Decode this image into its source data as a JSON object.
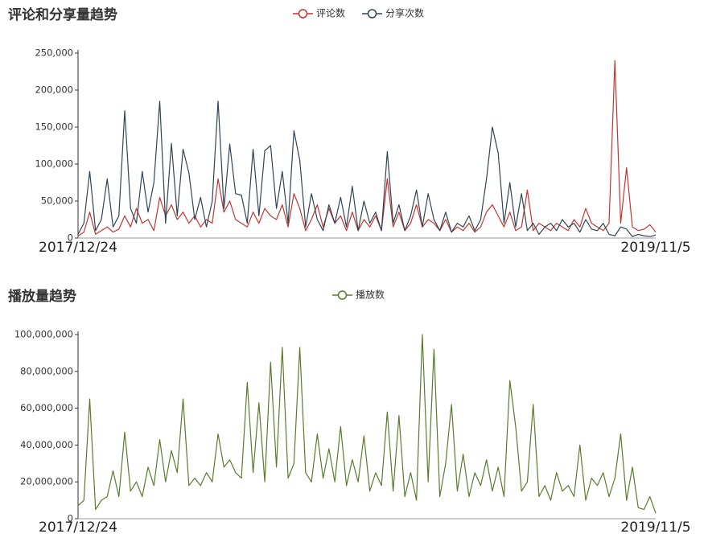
{
  "chart_data": [
    {
      "type": "line",
      "title": "评论和分享量趋势",
      "categories": [
        "2017/12/24",
        null,
        null,
        null,
        null,
        null,
        null,
        null,
        null,
        null,
        null,
        null,
        null,
        null,
        null,
        null,
        null,
        null,
        null,
        null,
        null,
        null,
        null,
        null,
        null,
        null,
        null,
        null,
        null,
        null,
        null,
        null,
        null,
        null,
        null,
        null,
        null,
        null,
        null,
        null,
        null,
        null,
        null,
        null,
        null,
        null,
        null,
        null,
        null,
        null,
        null,
        null,
        null,
        null,
        null,
        null,
        null,
        null,
        null,
        null,
        null,
        null,
        null,
        null,
        null,
        null,
        null,
        null,
        null,
        null,
        null,
        null,
        null,
        null,
        null,
        null,
        null,
        null,
        null,
        null,
        null,
        null,
        null,
        null,
        null,
        null,
        null,
        null,
        null,
        null,
        null,
        null,
        null,
        null,
        null,
        null,
        null,
        null,
        null,
        "2019/11/5"
      ],
      "series": [
        {
          "name": "评论数",
          "color": "#c23531",
          "values": [
            3000,
            8000,
            35000,
            5000,
            10000,
            15000,
            8000,
            12000,
            30000,
            15000,
            40000,
            20000,
            25000,
            10000,
            55000,
            30000,
            45000,
            25000,
            35000,
            20000,
            30000,
            15000,
            25000,
            20000,
            80000,
            35000,
            50000,
            25000,
            20000,
            15000,
            35000,
            20000,
            40000,
            30000,
            25000,
            45000,
            15000,
            60000,
            40000,
            10000,
            25000,
            45000,
            15000,
            40000,
            20000,
            30000,
            10000,
            35000,
            10000,
            25000,
            15000,
            30000,
            10000,
            80000,
            15000,
            35000,
            10000,
            20000,
            45000,
            15000,
            25000,
            20000,
            10000,
            25000,
            8000,
            15000,
            10000,
            20000,
            8000,
            15000,
            35000,
            45000,
            30000,
            15000,
            35000,
            10000,
            15000,
            65000,
            10000,
            20000,
            15000,
            10000,
            20000,
            15000,
            10000,
            25000,
            15000,
            40000,
            20000,
            15000,
            10000,
            20000,
            240000,
            20000,
            95000,
            15000,
            10000,
            12000,
            18000,
            8000
          ]
        },
        {
          "name": "分享次数",
          "color": "#2f4554",
          "values": [
            5000,
            20000,
            90000,
            10000,
            25000,
            80000,
            15000,
            30000,
            172000,
            40000,
            20000,
            90000,
            35000,
            75000,
            185000,
            20000,
            128000,
            30000,
            120000,
            88000,
            25000,
            55000,
            15000,
            50000,
            185000,
            40000,
            127000,
            60000,
            58000,
            20000,
            120000,
            30000,
            118000,
            125000,
            40000,
            90000,
            20000,
            145000,
            105000,
            15000,
            60000,
            25000,
            10000,
            45000,
            20000,
            55000,
            15000,
            70000,
            10000,
            50000,
            20000,
            35000,
            10000,
            117000,
            20000,
            45000,
            10000,
            30000,
            65000,
            15000,
            60000,
            25000,
            10000,
            35000,
            8000,
            20000,
            15000,
            30000,
            10000,
            25000,
            80000,
            150000,
            115000,
            20000,
            75000,
            15000,
            60000,
            10000,
            20000,
            5000,
            15000,
            20000,
            10000,
            25000,
            15000,
            20000,
            8000,
            25000,
            12000,
            10000,
            20000,
            5000,
            3000,
            15000,
            12000,
            2000,
            5000,
            3000,
            2000,
            4000
          ]
        }
      ],
      "ylim": [
        0,
        250000
      ],
      "yticks": [
        0,
        {
          "value": 50000,
          "label": "50,000"
        },
        {
          "value": 100000,
          "label": "100,000"
        },
        {
          "value": 150000,
          "label": "150,000"
        },
        {
          "value": 200000,
          "label": "200,000"
        },
        {
          "value": 250000,
          "label": "250,000"
        }
      ]
    },
    {
      "type": "line",
      "title": "播放量趋势",
      "categories": [
        "2017/12/24",
        null,
        null,
        null,
        null,
        null,
        null,
        null,
        null,
        null,
        null,
        null,
        null,
        null,
        null,
        null,
        null,
        null,
        null,
        null,
        null,
        null,
        null,
        null,
        null,
        null,
        null,
        null,
        null,
        null,
        null,
        null,
        null,
        null,
        null,
        null,
        null,
        null,
        null,
        null,
        null,
        null,
        null,
        null,
        null,
        null,
        null,
        null,
        null,
        null,
        null,
        null,
        null,
        null,
        null,
        null,
        null,
        null,
        null,
        null,
        null,
        null,
        null,
        null,
        null,
        null,
        null,
        null,
        null,
        null,
        null,
        null,
        null,
        null,
        null,
        null,
        null,
        null,
        null,
        null,
        null,
        null,
        null,
        null,
        null,
        null,
        null,
        null,
        null,
        null,
        null,
        null,
        null,
        null,
        null,
        null,
        null,
        null,
        null,
        "2019/11/5"
      ],
      "series": [
        {
          "name": "播放数",
          "color": "#5b7a2e",
          "values": [
            7000000,
            10000000,
            65000000,
            5000000,
            10000000,
            12000000,
            26000000,
            12000000,
            47000000,
            15000000,
            20000000,
            12000000,
            28000000,
            18000000,
            43000000,
            20000000,
            37000000,
            25000000,
            65000000,
            18000000,
            22000000,
            18000000,
            25000000,
            20000000,
            46000000,
            28000000,
            32000000,
            25000000,
            22000000,
            74000000,
            25000000,
            63000000,
            20000000,
            85000000,
            28000000,
            93000000,
            22000000,
            30000000,
            93000000,
            25000000,
            20000000,
            46000000,
            22000000,
            38000000,
            20000000,
            50000000,
            18000000,
            32000000,
            20000000,
            45000000,
            15000000,
            25000000,
            18000000,
            58000000,
            15000000,
            56000000,
            12000000,
            25000000,
            10000000,
            100000000,
            20000000,
            92000000,
            12000000,
            30000000,
            62000000,
            15000000,
            35000000,
            12000000,
            25000000,
            18000000,
            32000000,
            15000000,
            28000000,
            12000000,
            75000000,
            50000000,
            15000000,
            20000000,
            62000000,
            12000000,
            18000000,
            10000000,
            25000000,
            15000000,
            18000000,
            12000000,
            40000000,
            10000000,
            22000000,
            18000000,
            25000000,
            12000000,
            22000000,
            46000000,
            10000000,
            28000000,
            6000000,
            5000000,
            12000000,
            3000000
          ]
        }
      ],
      "ylim": [
        0,
        100000000
      ],
      "yticks": [
        0,
        {
          "value": 20000000,
          "label": "20,000,000"
        },
        {
          "value": 40000000,
          "label": "40,000,000"
        },
        {
          "value": 60000000,
          "label": "60,000,000"
        },
        {
          "value": 80000000,
          "label": "80,000,000"
        },
        {
          "value": 100000000,
          "label": "100,000,000"
        }
      ]
    }
  ]
}
